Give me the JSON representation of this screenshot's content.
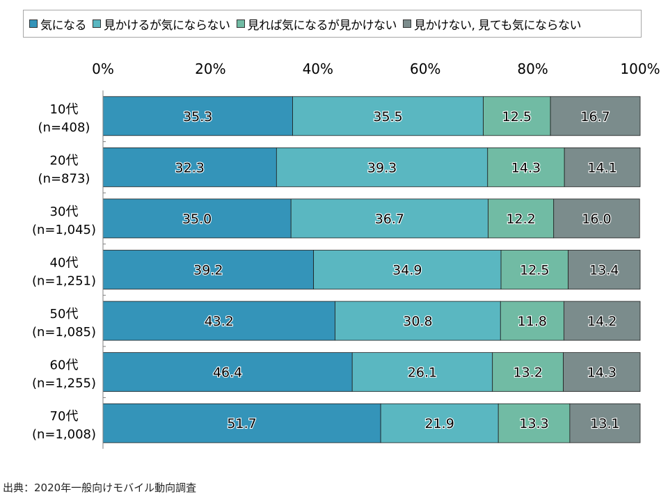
{
  "chart_data": {
    "type": "bar",
    "orientation": "horizontal",
    "stacked": true,
    "categories": [
      "10代\n(n=408)",
      "20代\n(n=873)",
      "30代\n(n=1,045)",
      "40代\n(n=1,251)",
      "50代\n(n=1,085)",
      "60代\n(n=1,255)",
      "70代\n(n=1,008)"
    ],
    "series": [
      {
        "name": "気になる",
        "color": "#3494b9",
        "values": [
          35.3,
          32.3,
          35.0,
          39.2,
          43.2,
          46.4,
          51.7
        ]
      },
      {
        "name": "見かけるが気にならない",
        "color": "#5ab7c1",
        "values": [
          35.5,
          39.3,
          36.7,
          34.9,
          30.8,
          26.1,
          21.9
        ]
      },
      {
        "name": "見れば気になるが見かけない",
        "color": "#71bba4",
        "values": [
          12.5,
          14.3,
          12.2,
          12.5,
          11.8,
          13.2,
          13.3
        ]
      },
      {
        "name": "見かけない, 見ても気にならない",
        "color": "#7b8c8c",
        "values": [
          16.7,
          14.1,
          16.0,
          13.4,
          14.2,
          14.3,
          13.1
        ]
      }
    ],
    "xlim": [
      0,
      100
    ],
    "ticks": [
      "0%",
      "20%",
      "40%",
      "60%",
      "80%",
      "100%"
    ],
    "legend_position": "top",
    "grid": false
  },
  "source": "出典：2020年一般向けモバイル動向調査"
}
